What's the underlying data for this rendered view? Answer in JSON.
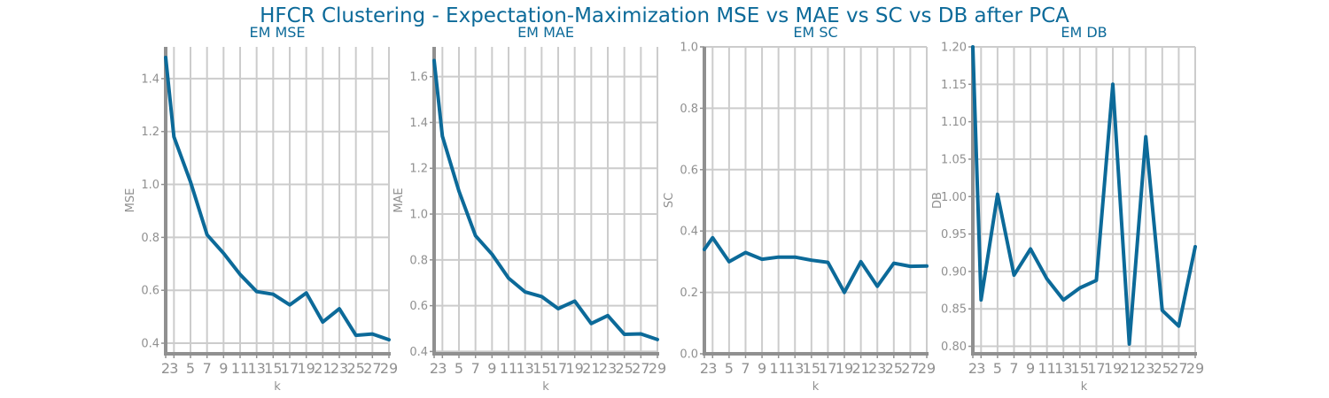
{
  "suptitle": "HFCR Clustering - Expectation-Maximization MSE vs MAE vs SC vs DB after PCA",
  "colors": {
    "line": "#0c6a99",
    "title": "#0c6a99",
    "grid": "#cccccc",
    "axis": "#909090",
    "tick_text": "#909090"
  },
  "chart_data": [
    {
      "type": "line",
      "title": "EM MSE",
      "xlabel": "k",
      "ylabel": "MSE",
      "x": [
        2,
        3,
        5,
        7,
        9,
        11,
        13,
        15,
        17,
        19,
        21,
        23,
        25,
        27,
        29
      ],
      "xticks": [
        2,
        3,
        5,
        7,
        9,
        11,
        13,
        15,
        17,
        19,
        21,
        23,
        25,
        27,
        29
      ],
      "series": [
        {
          "values": [
            1.48,
            1.18,
            1.01,
            0.81,
            0.74,
            0.66,
            0.595,
            0.585,
            0.545,
            0.59,
            0.48,
            0.53,
            0.43,
            0.435,
            0.413
          ]
        }
      ],
      "ylim": [
        0.36,
        1.52
      ],
      "yticks": [
        0.4,
        0.6,
        0.8,
        1.0,
        1.2,
        1.4
      ],
      "ytick_labels": [
        "0.4",
        "0.6",
        "0.8",
        "1.0",
        "1.2",
        "1.4"
      ],
      "grid": true
    },
    {
      "type": "line",
      "title": "EM MAE",
      "xlabel": "k",
      "ylabel": "MAE",
      "x": [
        2,
        3,
        5,
        7,
        9,
        11,
        13,
        15,
        17,
        19,
        21,
        23,
        25,
        27,
        29
      ],
      "xticks": [
        2,
        3,
        5,
        7,
        9,
        11,
        13,
        15,
        17,
        19,
        21,
        23,
        25,
        27,
        29
      ],
      "series": [
        {
          "values": [
            1.67,
            1.34,
            1.1,
            0.905,
            0.825,
            0.72,
            0.66,
            0.64,
            0.587,
            0.62,
            0.522,
            0.557,
            0.475,
            0.477,
            0.452
          ]
        }
      ],
      "ylim": [
        0.39,
        1.73
      ],
      "yticks": [
        0.4,
        0.6,
        0.8,
        1.0,
        1.2,
        1.4,
        1.6
      ],
      "ytick_labels": [
        "0.4",
        "0.6",
        "0.8",
        "1.0",
        "1.2",
        "1.4",
        "1.6"
      ],
      "grid": true
    },
    {
      "type": "line",
      "title": "EM SC",
      "xlabel": "k",
      "ylabel": "SC",
      "x": [
        2,
        3,
        5,
        7,
        9,
        11,
        13,
        15,
        17,
        19,
        21,
        23,
        25,
        27,
        29
      ],
      "xticks": [
        2,
        3,
        5,
        7,
        9,
        11,
        13,
        15,
        17,
        19,
        21,
        23,
        25,
        27,
        29
      ],
      "series": [
        {
          "values": [
            0.34,
            0.378,
            0.3,
            0.33,
            0.308,
            0.315,
            0.315,
            0.305,
            0.298,
            0.2,
            0.3,
            0.22,
            0.295,
            0.285,
            0.286
          ]
        }
      ],
      "ylim": [
        0.0,
        1.0
      ],
      "yticks": [
        0.0,
        0.2,
        0.4,
        0.6,
        0.8,
        1.0
      ],
      "ytick_labels": [
        "0.0",
        "0.2",
        "0.4",
        "0.6",
        "0.8",
        "1.0"
      ],
      "grid": true
    },
    {
      "type": "line",
      "title": "EM DB",
      "xlabel": "k",
      "ylabel": "DB",
      "x": [
        2,
        3,
        5,
        7,
        9,
        11,
        13,
        15,
        17,
        19,
        21,
        23,
        25,
        27,
        29
      ],
      "xticks": [
        2,
        3,
        5,
        7,
        9,
        11,
        13,
        15,
        17,
        19,
        21,
        23,
        25,
        27,
        29
      ],
      "series": [
        {
          "values": [
            1.2,
            0.862,
            1.003,
            0.895,
            0.93,
            0.89,
            0.862,
            0.878,
            0.888,
            1.15,
            0.803,
            1.08,
            0.848,
            0.827,
            0.933
          ]
        }
      ],
      "ylim": [
        0.79,
        1.2
      ],
      "yticks": [
        0.8,
        0.85,
        0.9,
        0.95,
        1.0,
        1.05,
        1.1,
        1.15,
        1.2
      ],
      "ytick_labels": [
        "0.80",
        "0.85",
        "0.90",
        "0.95",
        "1.00",
        "1.05",
        "1.10",
        "1.15",
        "1.20"
      ],
      "grid": true
    }
  ]
}
